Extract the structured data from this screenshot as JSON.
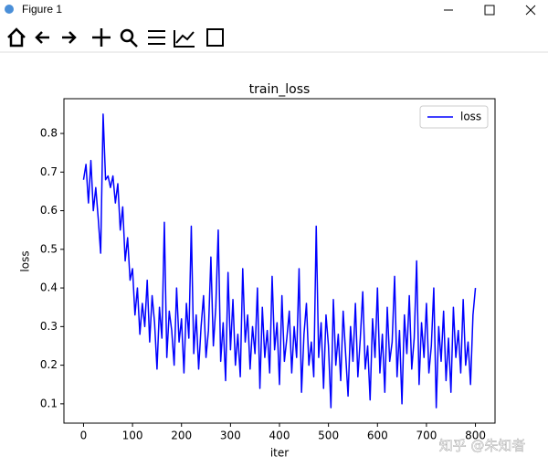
{
  "window_title": "Figure 1",
  "watermark": "知乎 @朱知者",
  "chart_data": {
    "type": "line",
    "title": "train_loss",
    "xlabel": "iter",
    "ylabel": "loss",
    "legend": "upper right",
    "grid": false,
    "xlim": [
      -40,
      840
    ],
    "ylim": [
      0.05,
      0.89
    ],
    "xticks": [
      0,
      100,
      200,
      300,
      400,
      500,
      600,
      700,
      800
    ],
    "yticks": [
      0.1,
      0.2,
      0.3,
      0.4,
      0.5,
      0.6,
      0.7,
      0.8
    ],
    "x": [
      0,
      5,
      10,
      15,
      20,
      25,
      30,
      35,
      40,
      45,
      50,
      55,
      60,
      65,
      70,
      75,
      80,
      85,
      90,
      95,
      100,
      105,
      110,
      115,
      120,
      125,
      130,
      135,
      140,
      145,
      150,
      155,
      160,
      165,
      170,
      175,
      180,
      185,
      190,
      195,
      200,
      205,
      210,
      215,
      220,
      225,
      230,
      235,
      240,
      245,
      250,
      255,
      260,
      265,
      270,
      275,
      280,
      285,
      290,
      295,
      300,
      305,
      310,
      315,
      320,
      325,
      330,
      335,
      340,
      345,
      350,
      355,
      360,
      365,
      370,
      375,
      380,
      385,
      390,
      395,
      400,
      405,
      410,
      415,
      420,
      425,
      430,
      435,
      440,
      445,
      450,
      455,
      460,
      465,
      470,
      475,
      480,
      485,
      490,
      495,
      500,
      505,
      510,
      515,
      520,
      525,
      530,
      535,
      540,
      545,
      550,
      555,
      560,
      565,
      570,
      575,
      580,
      585,
      590,
      595,
      600,
      605,
      610,
      615,
      620,
      625,
      630,
      635,
      640,
      645,
      650,
      655,
      660,
      665,
      670,
      675,
      680,
      685,
      690,
      695,
      700,
      705,
      710,
      715,
      720,
      725,
      730,
      735,
      740,
      745,
      750,
      755,
      760,
      765,
      770,
      775,
      780,
      785,
      790,
      795,
      800
    ],
    "series": [
      {
        "name": "loss",
        "color": "#0000ff",
        "values": [
          0.68,
          0.72,
          0.62,
          0.73,
          0.6,
          0.66,
          0.58,
          0.49,
          0.85,
          0.68,
          0.69,
          0.66,
          0.69,
          0.62,
          0.67,
          0.55,
          0.61,
          0.47,
          0.53,
          0.42,
          0.45,
          0.33,
          0.4,
          0.28,
          0.36,
          0.3,
          0.42,
          0.26,
          0.38,
          0.31,
          0.19,
          0.35,
          0.27,
          0.57,
          0.22,
          0.34,
          0.29,
          0.2,
          0.4,
          0.26,
          0.32,
          0.18,
          0.36,
          0.27,
          0.56,
          0.23,
          0.33,
          0.19,
          0.3,
          0.38,
          0.22,
          0.29,
          0.48,
          0.25,
          0.35,
          0.55,
          0.21,
          0.31,
          0.16,
          0.44,
          0.24,
          0.37,
          0.2,
          0.28,
          0.17,
          0.45,
          0.26,
          0.33,
          0.19,
          0.3,
          0.23,
          0.4,
          0.14,
          0.35,
          0.22,
          0.29,
          0.18,
          0.43,
          0.24,
          0.31,
          0.15,
          0.38,
          0.21,
          0.27,
          0.34,
          0.18,
          0.3,
          0.22,
          0.45,
          0.13,
          0.28,
          0.36,
          0.2,
          0.26,
          0.17,
          0.56,
          0.22,
          0.31,
          0.14,
          0.33,
          0.25,
          0.09,
          0.37,
          0.2,
          0.28,
          0.16,
          0.34,
          0.23,
          0.12,
          0.3,
          0.21,
          0.36,
          0.17,
          0.27,
          0.39,
          0.19,
          0.25,
          0.11,
          0.32,
          0.22,
          0.4,
          0.18,
          0.28,
          0.13,
          0.35,
          0.21,
          0.26,
          0.43,
          0.17,
          0.29,
          0.1,
          0.33,
          0.23,
          0.38,
          0.19,
          0.27,
          0.47,
          0.15,
          0.31,
          0.22,
          0.36,
          0.18,
          0.25,
          0.4,
          0.09,
          0.3,
          0.21,
          0.34,
          0.16,
          0.27,
          0.13,
          0.35,
          0.22,
          0.29,
          0.18,
          0.37,
          0.2,
          0.26,
          0.15,
          0.33,
          0.4
        ]
      }
    ]
  }
}
